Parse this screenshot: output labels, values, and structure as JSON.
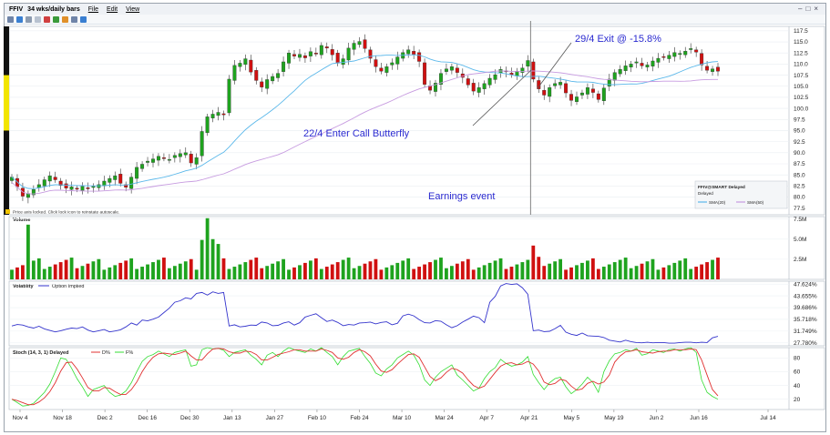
{
  "window": {
    "symbol": "FFIV",
    "period": "34 wks/daily bars",
    "menus": [
      "File",
      "Edit",
      "View"
    ]
  },
  "chart_data": [
    {
      "type": "candlestick",
      "panel": "price",
      "ylim": [
        76,
        118.5
      ],
      "yticks": [
        77.5,
        80.0,
        82.5,
        85.0,
        87.5,
        90.0,
        92.5,
        95.0,
        97.5,
        100.0,
        102.5,
        105.0,
        107.5,
        110.0,
        112.5,
        115.0,
        117.5
      ],
      "annotations": [
        "22/4 Enter Call Butterfly",
        "29/4 Exit @ -15.8%",
        "Earnings event"
      ],
      "note": "Price axis locked. Click lock icon to reinstate autoscale.",
      "legend": {
        "title": "FFIV@SMART Delayed",
        "subtitle": "Delayed",
        "items": [
          {
            "name": "SMA(20)",
            "color": "#5bb8ea"
          },
          {
            "name": "SMA(50)",
            "color": "#c79be0"
          }
        ]
      },
      "closes": [
        84.5,
        82.3,
        80.2,
        80.8,
        81.7,
        82.8,
        83.9,
        84.8,
        83.9,
        82.6,
        82.0,
        82.3,
        81.8,
        82.4,
        81.9,
        82.4,
        82.8,
        83.6,
        84.2,
        84.8,
        83.1,
        82.2,
        84.5,
        86.7,
        87.4,
        88.1,
        88.6,
        89.2,
        88.8,
        88.5,
        89.4,
        89.8,
        90.0,
        87.7,
        88.9,
        94.8,
        98.1,
        98.7,
        99.1,
        98.6,
        106.6,
        109.7,
        110.2,
        111.2,
        108.2,
        106.3,
        104.8,
        106.5,
        107.2,
        107.9,
        110.5,
        112.5,
        111.8,
        112.2,
        111.4,
        112.8,
        112.4,
        114.2,
        113.6,
        112.1,
        110.2,
        111.2,
        113.6,
        114.7,
        115.1,
        113.5,
        111.3,
        109.4,
        108.4,
        109.4,
        110.3,
        111.6,
        112.6,
        113.2,
        112.2,
        110.6,
        105.4,
        104.1,
        105.7,
        107.9,
        108.9,
        109.4,
        108.1,
        107.0,
        105.3,
        103.9,
        104.7,
        105.6,
        106.8,
        107.6,
        108.8,
        108.3,
        107.6,
        108.4,
        109.1,
        110.8,
        106.6,
        104.4,
        103.0,
        104.7,
        105.6,
        105.9,
        103.5,
        101.8,
        102.6,
        103.5,
        104.7,
        103.6,
        102.0,
        104.6,
        106.6,
        108.1,
        108.8,
        109.6,
        110.0,
        110.5,
        109.6,
        109.8,
        110.7,
        111.3,
        111.5,
        112.0,
        112.6,
        112.4,
        112.9,
        113.5,
        112.7,
        109.8,
        108.6,
        108.9,
        108.4
      ],
      "x_tick_labels": [
        "Nov 4",
        "Nov 18",
        "Dec 2",
        "Dec 16",
        "Dec 30",
        "Jan 13",
        "Jan 27",
        "Feb 10",
        "Feb 24",
        "Mar 10",
        "Mar 24",
        "Apr 7",
        "Apr 21",
        "May 5",
        "May 19",
        "Jun 2",
        "Jun 16",
        "Jul 14"
      ]
    },
    {
      "type": "bar",
      "panel": "volume",
      "title": "Volume",
      "yticks": [
        "7.5M",
        "5.0M",
        "2.5M"
      ],
      "ylim": [
        0,
        7.8
      ],
      "colors": {
        "up": "#1ea31e",
        "down": "#d01010"
      },
      "note": "bar heights follow the price panel's daily direction"
    },
    {
      "type": "line",
      "panel": "volatility",
      "title": "Volatility",
      "series": [
        {
          "name": "Option Implied",
          "color": "#3333cc"
        }
      ],
      "yticks": [
        27.78,
        31.749,
        35.718,
        39.686,
        43.655,
        47.624
      ],
      "ytick_labels": [
        "27.780%",
        "31.749%",
        "35.718%",
        "39.686%",
        "43.655%",
        "47.624%"
      ],
      "ylim": [
        26.8,
        48.6
      ],
      "values": [
        33.5,
        34.0,
        33.8,
        33.2,
        32.8,
        33.4,
        32.5,
        32.0,
        31.5,
        31.9,
        32.4,
        32.8,
        32.6,
        33.2,
        32.1,
        31.5,
        31.9,
        32.3,
        31.5,
        31.8,
        32.2,
        33.2,
        34.5,
        33.8,
        35.5,
        35.2,
        35.8,
        36.5,
        38.0,
        39.5,
        41.5,
        42.0,
        43.0,
        42.6,
        44.5,
        44.8,
        43.9,
        45.0,
        44.5,
        44.8,
        33.5,
        33.9,
        33.2,
        33.4,
        33.8,
        33.7,
        34.8,
        34.5,
        33.6,
        33.7,
        34.5,
        34.9,
        33.8,
        34.6,
        36.5,
        37.1,
        37.6,
        36.3,
        35.0,
        35.5,
        34.7,
        33.6,
        34.0,
        33.8,
        34.5,
        34.6,
        34.8,
        34.2,
        34.7,
        34.9,
        33.9,
        34.4,
        36.9,
        37.5,
        36.9,
        35.6,
        34.6,
        34.5,
        35.3,
        35.1,
        33.9,
        32.9,
        33.6,
        34.8,
        35.8,
        36.8,
        36.3,
        34.6,
        41.5,
        43.5,
        47.0,
        47.8,
        47.5,
        47.7,
        46.4,
        44.2,
        31.9,
        32.1,
        31.6,
        31.7,
        32.6,
        33.7,
        31.4,
        30.7,
        30.3,
        31.1,
        30.2,
        30.1,
        30.0,
        29.6,
        28.7,
        28.4,
        28.1,
        28.7,
        28.2,
        27.9,
        27.8,
        28.0,
        27.8,
        27.9,
        27.9,
        27.7,
        27.7,
        27.9,
        28.0,
        28.0,
        27.8,
        28.0,
        27.9,
        29.5,
        30.0
      ]
    },
    {
      "type": "line",
      "panel": "stochastic",
      "title": "Stoch (14, 3, 1) Delayed",
      "series": [
        {
          "name": "D%",
          "color": "#e03030",
          "role": "smoothed"
        },
        {
          "name": "F%",
          "color": "#33dd33",
          "role": "raw"
        }
      ],
      "yticks": [
        20,
        40,
        60,
        80
      ],
      "ylim": [
        5,
        95
      ],
      "f_values": [
        20,
        15,
        10,
        11,
        14,
        22,
        30,
        42,
        60,
        80,
        78,
        65,
        50,
        38,
        24,
        34,
        37,
        40,
        30,
        24,
        26,
        32,
        44,
        60,
        75,
        82,
        85,
        90,
        86,
        82,
        88,
        90,
        92,
        68,
        70,
        92,
        95,
        93,
        94,
        91,
        82,
        88,
        90,
        92,
        84,
        78,
        70,
        84,
        88,
        82,
        90,
        95,
        92,
        90,
        88,
        93,
        90,
        95,
        88,
        82,
        70,
        82,
        90,
        92,
        94,
        82,
        72,
        58,
        54,
        64,
        70,
        80,
        85,
        90,
        84,
        70,
        48,
        40,
        52,
        60,
        65,
        70,
        55,
        48,
        40,
        32,
        36,
        50,
        60,
        66,
        78,
        72,
        68,
        70,
        74,
        82,
        56,
        44,
        34,
        44,
        50,
        52,
        38,
        28,
        34,
        42,
        52,
        44,
        30,
        60,
        76,
        86,
        88,
        92,
        90,
        94,
        84,
        86,
        92,
        90,
        88,
        92,
        93,
        90,
        93,
        95,
        88,
        48,
        30,
        24,
        20
      ],
      "d_values": [
        20,
        18,
        15,
        12,
        12,
        16,
        22,
        31,
        44,
        61,
        73,
        74,
        64,
        51,
        37,
        32,
        32,
        37,
        36,
        31,
        27,
        27,
        34,
        45,
        60,
        72,
        81,
        86,
        87,
        86,
        85,
        87,
        90,
        83,
        77,
        77,
        86,
        93,
        94,
        93,
        89,
        87,
        87,
        90,
        89,
        85,
        77,
        77,
        81,
        85,
        87,
        89,
        92,
        92,
        90,
        90,
        90,
        93,
        91,
        88,
        80,
        78,
        81,
        88,
        92,
        89,
        83,
        71,
        61,
        59,
        63,
        71,
        78,
        85,
        86,
        81,
        67,
        53,
        47,
        51,
        59,
        65,
        63,
        58,
        48,
        40,
        36,
        39,
        49,
        59,
        68,
        72,
        73,
        70,
        71,
        75,
        71,
        61,
        45,
        41,
        43,
        49,
        47,
        39,
        33,
        35,
        43,
        46,
        42,
        45,
        55,
        74,
        83,
        89,
        90,
        92,
        89,
        88,
        87,
        89,
        90,
        90,
        92,
        92,
        92,
        93,
        92,
        77,
        55,
        34,
        25
      ],
      "x_tick_labels": [
        "Nov 4",
        "Nov 18",
        "Dec 2",
        "Dec 16",
        "Dec 30",
        "Jan 13",
        "Jan 27",
        "Feb 10",
        "Feb 24",
        "Mar 10",
        "Mar 24",
        "Apr 7",
        "Apr 21",
        "May 5",
        "May 19",
        "Jun 2",
        "Jun 16",
        "Jul 14"
      ]
    }
  ]
}
